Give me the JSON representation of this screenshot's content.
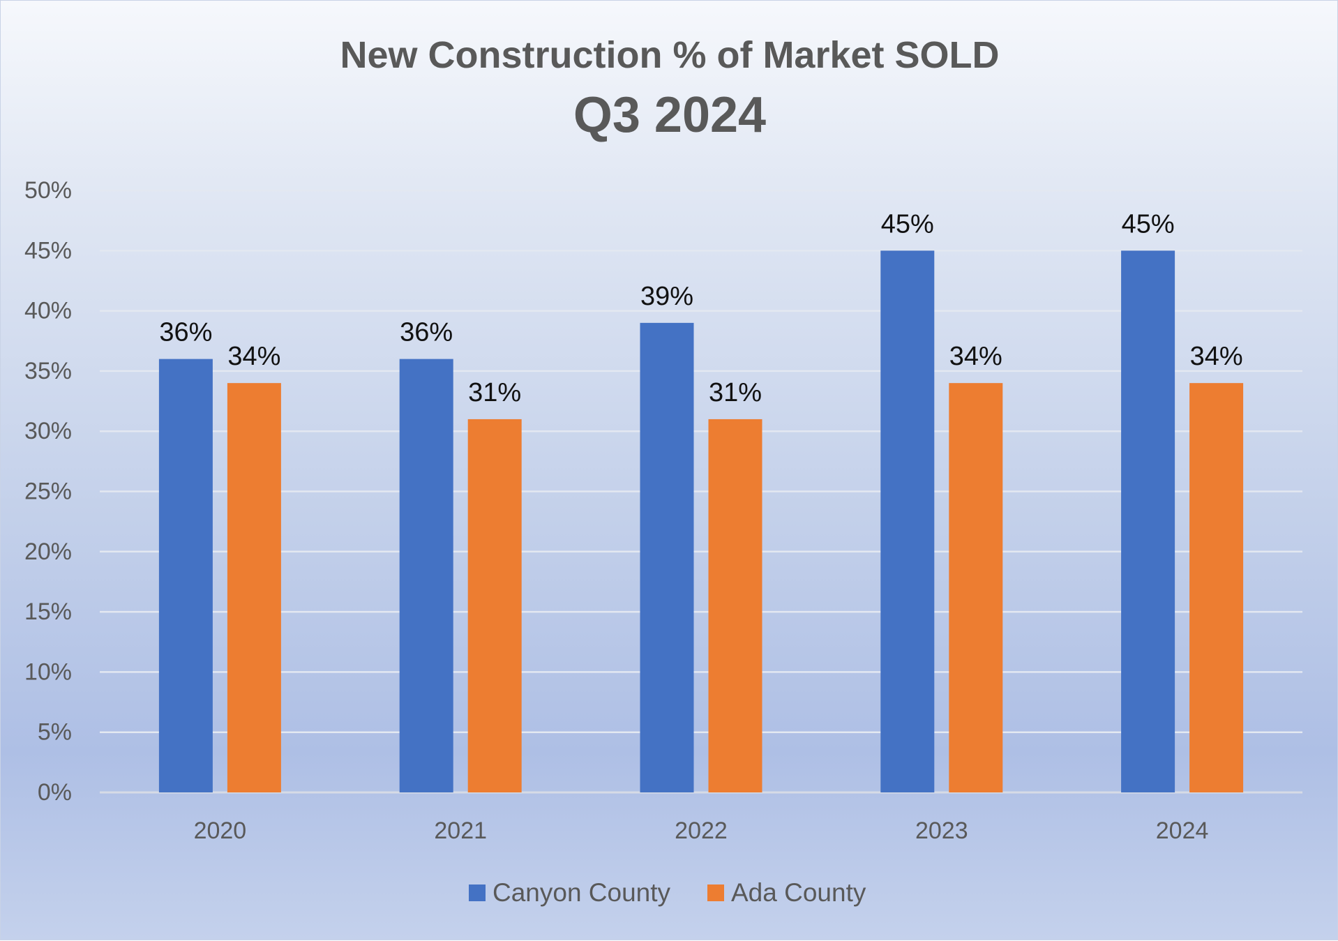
{
  "chart_data": {
    "type": "bar",
    "title": "New Construction % of Market SOLD",
    "subtitle": "Q3 2024",
    "categories": [
      "2020",
      "2021",
      "2022",
      "2023",
      "2024"
    ],
    "series": [
      {
        "name": "Canyon County",
        "color": "#4472C4",
        "values": [
          36,
          36,
          39,
          45,
          45
        ]
      },
      {
        "name": "Ada County",
        "color": "#ED7D31",
        "values": [
          34,
          31,
          31,
          34,
          34
        ]
      }
    ],
    "data_labels": [
      [
        "36%",
        "36%",
        "39%",
        "45%",
        "45%"
      ],
      [
        "34%",
        "31%",
        "31%",
        "34%",
        "34%"
      ]
    ],
    "ylim": [
      0,
      50
    ],
    "y_ticks": [
      0,
      5,
      10,
      15,
      20,
      25,
      30,
      35,
      40,
      45,
      50
    ],
    "y_tick_labels": [
      "0%",
      "5%",
      "10%",
      "15%",
      "20%",
      "25%",
      "30%",
      "35%",
      "40%",
      "45%",
      "50%"
    ],
    "xlabel": "",
    "ylabel": "",
    "grid": true,
    "legend_position": "bottom"
  }
}
